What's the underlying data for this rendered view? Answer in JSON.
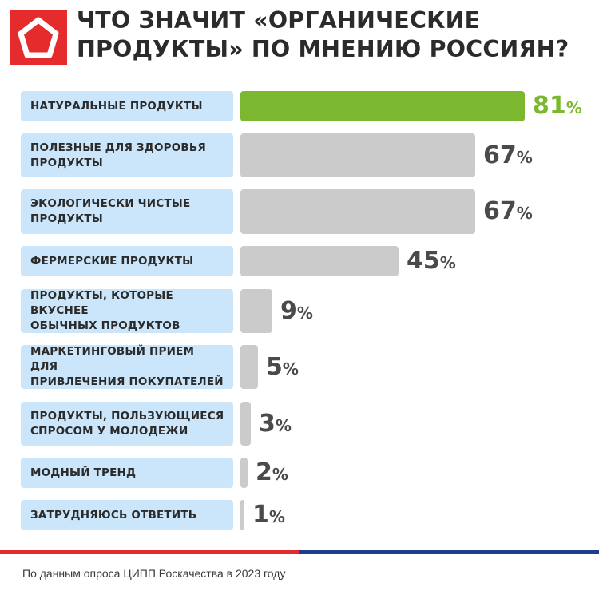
{
  "title": "ЧТО ЗНАЧИТ «ОРГАНИЧЕСКИЕ ПРОДУКТЫ» ПО МНЕНИЮ РОССИЯН?",
  "source": "По данным опроса ЦИПП Роскачества в 2023 году",
  "colors": {
    "highlight": "#7cb82f",
    "bar": "#cbcbcb",
    "label_bg": "#cbe6fa",
    "brand_red": "#e52b2b",
    "brand_blue": "#1c3c8c"
  },
  "chart_data": {
    "type": "bar",
    "orientation": "horizontal",
    "title": "ЧТО ЗНАЧИТ «ОРГАНИЧЕСКИЕ ПРОДУКТЫ» ПО МНЕНИЮ РОССИЯН?",
    "unit": "%",
    "xlim": [
      0,
      100
    ],
    "highlighted_category_index": 0,
    "categories": [
      "НАТУРАЛЬНЫЕ ПРОДУКТЫ",
      "ПОЛЕЗНЫЕ ДЛЯ ЗДОРОВЬЯ ПРОДУКТЫ",
      "ЭКОЛОГИЧЕСКИ ЧИСТЫЕ ПРОДУКТЫ",
      "ФЕРМЕРСКИЕ ПРОДУКТЫ",
      "ПРОДУКТЫ, КОТОРЫЕ ВКУСНЕЕ ОБЫЧНЫХ ПРОДУКТОВ",
      "МАРКЕТИНГОВЫЙ ПРИЕМ ДЛЯ ПРИВЛЕЧЕНИЯ ПОКУПАТЕЛЕЙ",
      "ПРОДУКТЫ, ПОЛЬЗУЮЩИЕСЯ СПРОСОМ У МОЛОДЕЖИ",
      "МОДНЫЙ ТРЕНД",
      "ЗАТРУДНЯЮСЬ ОТВЕТИТЬ"
    ],
    "values": [
      81,
      67,
      67,
      45,
      9,
      5,
      3,
      2,
      1
    ]
  }
}
